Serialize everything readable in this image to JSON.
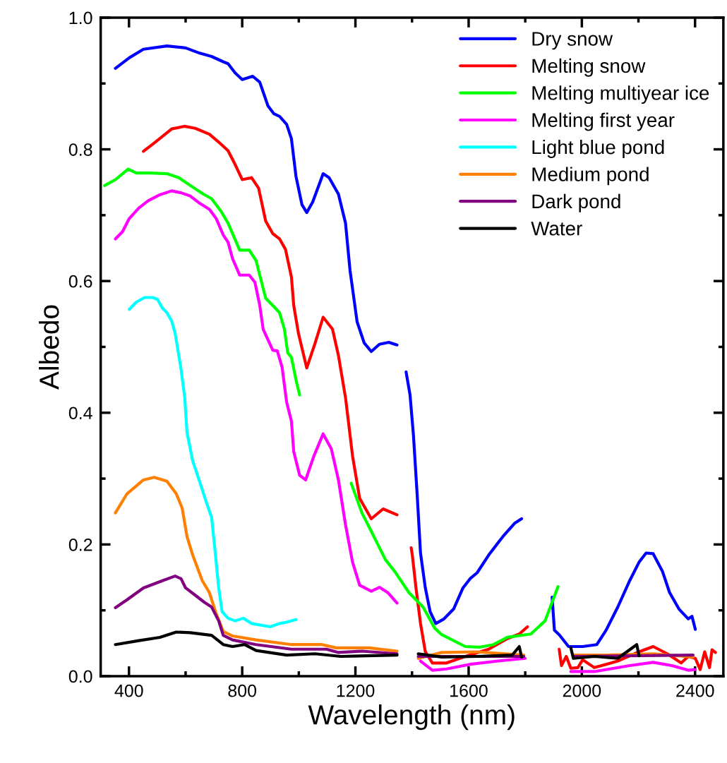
{
  "chart_data": {
    "type": "line",
    "xlabel": "Wavelength (nm)",
    "ylabel": "Albedo",
    "xlim": [
      300,
      2500
    ],
    "ylim": [
      0,
      1
    ],
    "xticks": [
      400,
      {
        "value": 600,
        "label": null
      },
      800,
      {
        "value": 1000,
        "label": null
      },
      1200,
      {
        "value": 1400,
        "label": null
      },
      1600,
      {
        "value": 1800,
        "label": null
      },
      2000,
      {
        "value": 2200,
        "label": null
      },
      2400
    ],
    "yticks": [
      {
        "value": 0,
        "label": "0.0"
      },
      {
        "value": 0.1,
        "label": null
      },
      {
        "value": 0.2,
        "label": "0.2"
      },
      {
        "value": 0.3,
        "label": null
      },
      {
        "value": 0.4,
        "label": "0.4"
      },
      {
        "value": 0.5,
        "label": null
      },
      {
        "value": 0.6,
        "label": "0.6"
      },
      {
        "value": 0.7,
        "label": null
      },
      {
        "value": 0.8,
        "label": "0.8"
      },
      {
        "value": 0.9,
        "label": null
      },
      {
        "value": 1,
        "label": "1.0"
      }
    ],
    "grid": false,
    "legend": "top right",
    "marker": "none",
    "line_style": "solid",
    "series": [
      {
        "name": "Dry snow",
        "color": "#0000ff",
        "x": [
          352,
          401,
          451,
          534,
          600,
          650,
          692,
          733,
          750,
          775,
          800,
          837,
          862,
          891,
          912,
          932,
          957,
          974,
          990,
          1011,
          1028,
          1049,
          1086,
          1107,
          1140,
          1165,
          1181,
          1206,
          1231,
          1256,
          1285,
          1318,
          1347,
          1363,
          1379,
          1393,
          1405,
          1418,
          1430,
          1447,
          1464,
          1484,
          1513,
          1547,
          1580,
          1605,
          1630,
          1671,
          1721,
          1762,
          1787,
          1840,
          1895,
          1903,
          1920,
          1953,
          2003,
          2053,
          2086,
          2127,
          2169,
          2202,
          2227,
          2252,
          2285,
          2310,
          2343,
          2376,
          2389,
          2401
        ],
        "values": [
          0.923,
          0.939,
          0.952,
          0.957,
          0.954,
          0.946,
          0.941,
          0.933,
          0.93,
          0.916,
          0.906,
          0.911,
          0.902,
          0.866,
          0.854,
          0.85,
          0.838,
          0.816,
          0.759,
          0.716,
          0.704,
          0.72,
          0.763,
          0.757,
          0.732,
          0.688,
          0.616,
          0.538,
          0.506,
          0.493,
          0.504,
          0.507,
          0.503,
          null,
          0.462,
          0.427,
          0.366,
          0.277,
          0.187,
          0.134,
          0.098,
          0.08,
          0.087,
          0.102,
          0.134,
          0.148,
          0.157,
          0.184,
          0.212,
          0.232,
          0.239,
          null,
          0.12,
          0.07,
          0.063,
          0.045,
          0.045,
          0.048,
          0.07,
          0.105,
          0.145,
          0.173,
          0.187,
          0.186,
          0.159,
          0.127,
          0.102,
          0.087,
          0.091,
          0.071
        ]
      },
      {
        "name": "Melting snow",
        "color": "#ff0000",
        "x": [
          451,
          493,
          551,
          596,
          634,
          684,
          717,
          750,
          775,
          800,
          833,
          858,
          883,
          908,
          932,
          953,
          974,
          982,
          999,
          1028,
          1057,
          1086,
          1119,
          1140,
          1165,
          1190,
          1215,
          1256,
          1298,
          1347,
          1372,
          1397,
          1401,
          1414,
          1430,
          1447,
          1472,
          1522,
          1588,
          1671,
          1737,
          1779,
          1808,
          1864,
          1920,
          1928,
          1945,
          1961,
          1986,
          2003,
          2044,
          2086,
          2127,
          2202,
          2252,
          2302,
          2351,
          2376,
          2401,
          2418,
          2434,
          2451,
          2460,
          2472
        ],
        "values": [
          0.797,
          0.811,
          0.831,
          0.835,
          0.832,
          0.823,
          0.811,
          0.798,
          0.777,
          0.754,
          0.757,
          0.741,
          0.691,
          0.672,
          0.664,
          0.648,
          0.606,
          0.563,
          0.52,
          0.468,
          0.505,
          0.545,
          0.527,
          0.487,
          0.423,
          0.334,
          0.27,
          0.239,
          0.254,
          0.245,
          null,
          0.195,
          0.184,
          0.134,
          0.08,
          0.037,
          0.02,
          0.02,
          0.03,
          0.041,
          0.057,
          0.064,
          0.075,
          null,
          0.041,
          0.016,
          0.03,
          0.012,
          0.013,
          0.025,
          0.013,
          0.018,
          0.023,
          0.037,
          0.045,
          0.034,
          0.02,
          0.03,
          0.027,
          0.01,
          0.037,
          0.013,
          0.04,
          0.036
        ]
      },
      {
        "name": "Melting multiyear ice",
        "color": "#00ff00",
        "x": [
          314,
          352,
          397,
          426,
          476,
          534,
          576,
          617,
          663,
          692,
          725,
          750,
          775,
          791,
          825,
          849,
          883,
          908,
          932,
          949,
          961,
          974,
          991,
          1003,
          1094,
          1185,
          1223,
          1256,
          1306,
          1339,
          1389,
          1439,
          1480,
          1505,
          1588,
          1638,
          1688,
          1737,
          1820,
          1870,
          1916
        ],
        "values": [
          0.745,
          0.754,
          0.77,
          0.764,
          0.764,
          0.763,
          0.757,
          0.745,
          0.732,
          0.725,
          0.706,
          0.688,
          0.663,
          0.647,
          0.647,
          0.631,
          0.574,
          0.563,
          0.552,
          0.527,
          0.491,
          0.484,
          0.448,
          0.427,
          null,
          0.293,
          0.248,
          0.22,
          0.177,
          0.159,
          0.127,
          0.105,
          0.073,
          0.063,
          0.045,
          0.044,
          0.048,
          0.059,
          0.064,
          0.084,
          0.136
        ]
      },
      {
        "name": "Melting first year",
        "color": "#ff00ff",
        "x": [
          352,
          377,
          401,
          435,
          468,
          509,
          551,
          584,
          617,
          650,
          684,
          708,
          733,
          750,
          766,
          791,
          825,
          845,
          862,
          874,
          908,
          924,
          941,
          957,
          974,
          982,
          1003,
          1024,
          1053,
          1086,
          1115,
          1140,
          1165,
          1190,
          1215,
          1256,
          1285,
          1314,
          1347,
          1390,
          1430,
          1472,
          1522,
          1605,
          1704,
          1800,
          1880,
          1961,
          2044,
          2169,
          2252,
          2318,
          2376,
          2400
        ],
        "values": [
          0.664,
          0.675,
          0.695,
          0.711,
          0.722,
          0.731,
          0.737,
          0.734,
          0.729,
          0.718,
          0.709,
          0.695,
          0.67,
          0.659,
          0.634,
          0.609,
          0.609,
          0.598,
          0.563,
          0.527,
          0.495,
          0.494,
          0.469,
          0.416,
          0.387,
          0.341,
          0.305,
          0.298,
          0.334,
          0.368,
          0.345,
          0.298,
          0.23,
          0.173,
          0.138,
          0.129,
          0.135,
          0.127,
          0.111,
          null,
          0.023,
          0.009,
          0.011,
          0.018,
          0.023,
          0.027,
          null,
          0.007,
          0.007,
          0.016,
          0.021,
          0.016,
          0.009,
          0.01
        ]
      },
      {
        "name": "Light blue pond",
        "color": "#00ffff",
        "x": [
          401,
          426,
          455,
          484,
          501,
          518,
          534,
          551,
          563,
          584,
          597,
          605,
          625,
          650,
          675,
          692,
          704,
          717,
          729,
          750,
          775,
          804,
          833,
          899,
          932,
          957,
          990
        ],
        "values": [
          0.557,
          0.568,
          0.575,
          0.575,
          0.572,
          0.559,
          0.552,
          0.539,
          0.521,
          0.466,
          0.423,
          0.37,
          0.327,
          0.295,
          0.262,
          0.241,
          0.191,
          0.134,
          0.098,
          0.088,
          0.084,
          0.088,
          0.08,
          0.075,
          0.08,
          0.082,
          0.086
        ]
      },
      {
        "name": "Medium pond",
        "color": "#ff8000",
        "x": [
          352,
          393,
          451,
          489,
          534,
          567,
          588,
          605,
          625,
          659,
          684,
          708,
          733,
          766,
          849,
          974,
          1082,
          1132,
          1248,
          1347,
          1385,
          1422,
          1505,
          1630,
          1795,
          1880,
          1970,
          2086,
          2252,
          2393
        ],
        "values": [
          0.248,
          0.277,
          0.298,
          0.302,
          0.296,
          0.277,
          0.255,
          0.212,
          0.184,
          0.145,
          0.127,
          0.095,
          0.068,
          0.061,
          0.055,
          0.048,
          0.048,
          0.043,
          0.043,
          0.038,
          null,
          0.027,
          0.036,
          0.037,
          0.032,
          null,
          0.032,
          0.032,
          0.034,
          0.029
        ]
      },
      {
        "name": "Dark pond",
        "color": "#800080",
        "x": [
          352,
          393,
          451,
          518,
          563,
          584,
          600,
          634,
          667,
          692,
          717,
          733,
          766,
          849,
          974,
          1098,
          1140,
          1223,
          1347,
          1385,
          1422,
          1795,
          1880,
          1970,
          2393
        ],
        "values": [
          0.104,
          0.116,
          0.134,
          0.145,
          0.152,
          0.148,
          0.134,
          0.123,
          0.112,
          0.105,
          0.084,
          0.062,
          0.055,
          0.048,
          0.041,
          0.041,
          0.036,
          0.038,
          0.034,
          null,
          0.03,
          0.03,
          null,
          0.03,
          0.032
        ]
      },
      {
        "name": "Water",
        "color": "#000000",
        "x": [
          352,
          435,
          509,
          567,
          617,
          692,
          733,
          766,
          808,
          849,
          957,
          1057,
          1148,
          1347,
          1385,
          1422,
          1505,
          1630,
          1754,
          1779,
          1787,
          1880,
          1961,
          1970,
          2044,
          2127,
          2194,
          2202
        ],
        "values": [
          0.048,
          0.054,
          0.059,
          0.067,
          0.066,
          0.062,
          0.048,
          0.045,
          0.048,
          0.039,
          0.032,
          0.034,
          0.03,
          0.032,
          null,
          0.034,
          0.029,
          0.03,
          0.032,
          0.045,
          0.029,
          null,
          0.043,
          0.027,
          0.03,
          0.027,
          0.048,
          0.031
        ]
      }
    ]
  }
}
